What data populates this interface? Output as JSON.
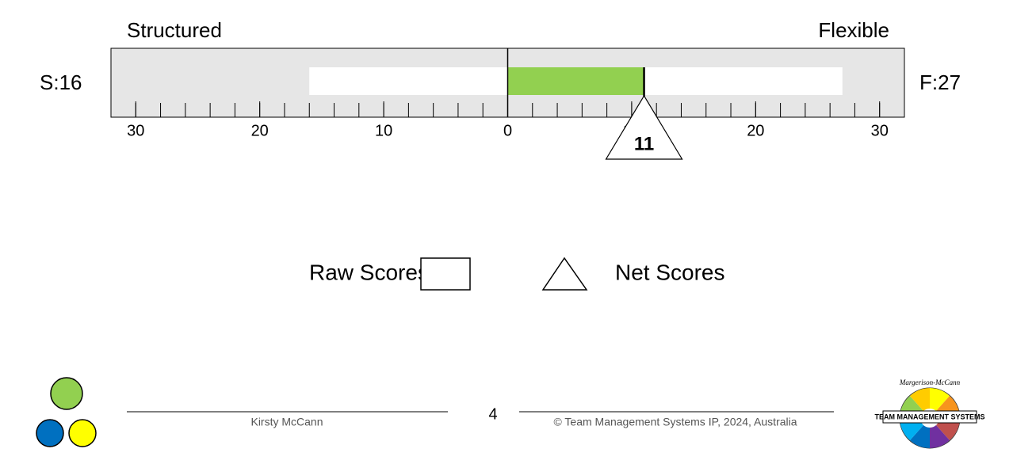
{
  "chart_data": {
    "type": "bipolar",
    "left_title": "Structured",
    "right_title": "Flexible",
    "raw": {
      "name": "Raw Scores",
      "left": 16,
      "right": 27,
      "left_label": "S:16",
      "right_label": "F:27",
      "color": "#ffffff"
    },
    "net": {
      "name": "Net Scores",
      "value": 11,
      "color": "#92d050"
    },
    "xlim": [
      -32,
      32
    ],
    "xticks": [
      {
        "value": -30,
        "label": "30"
      },
      {
        "value": -20,
        "label": "20"
      },
      {
        "value": -10,
        "label": "10"
      },
      0,
      {
        "value": 10,
        "label": "10"
      },
      20,
      30
    ],
    "minor_ticks": [
      -30,
      -28,
      -26,
      -24,
      -22,
      -20,
      -18,
      -16,
      -14,
      -12,
      -10,
      -8,
      -6,
      -4,
      -2,
      2,
      4,
      6,
      8,
      10,
      12,
      14,
      16,
      18,
      20,
      22,
      24,
      26,
      28,
      30
    ],
    "frame_color": "#e6e6e6"
  },
  "footer": {
    "author": "Kirsty McCann",
    "page": 4,
    "copyright": "© Team Management Systems IP, 2024, Australia",
    "logo_arc": "Margerison-McCann",
    "logo_banner": "TEAM MANAGEMENT SYSTEMS"
  }
}
